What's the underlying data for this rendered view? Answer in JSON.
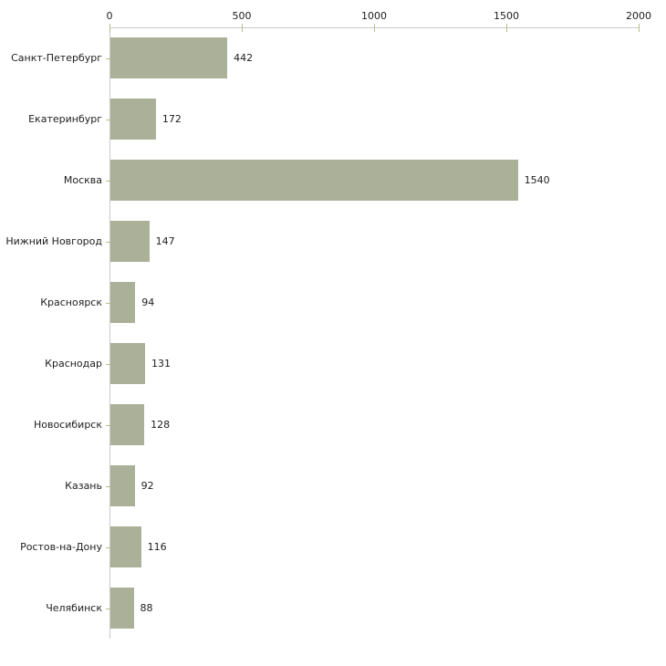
{
  "chart_data": {
    "type": "bar",
    "orientation": "horizontal",
    "title": "",
    "categories": [
      "Санкт-Петербург",
      "Екатеринбург",
      "Москва",
      "Нижний Новгород",
      "Красноярск",
      "Краснодар",
      "Новосибирск",
      "Казань",
      "Ростов-на-Дону",
      "Челябинск"
    ],
    "values": [
      442,
      172,
      1540,
      147,
      94,
      131,
      128,
      92,
      116,
      88
    ],
    "data_labels": [
      "442",
      "172",
      "1540",
      "147",
      "94",
      "131",
      "128",
      "92",
      "116",
      "88"
    ],
    "x_axis": {
      "position": "top",
      "min": 0,
      "max": 2000,
      "ticks": [
        0,
        500,
        1000,
        1500,
        2000
      ],
      "tick_labels": [
        "0",
        "500",
        "1000",
        "1500",
        "2000"
      ]
    },
    "grid": false,
    "legend": false,
    "colors": {
      "bar": "#abb198",
      "tick": "#b9bd8b",
      "axis": "#c9c9c9",
      "text": "#1d1d1d"
    }
  }
}
